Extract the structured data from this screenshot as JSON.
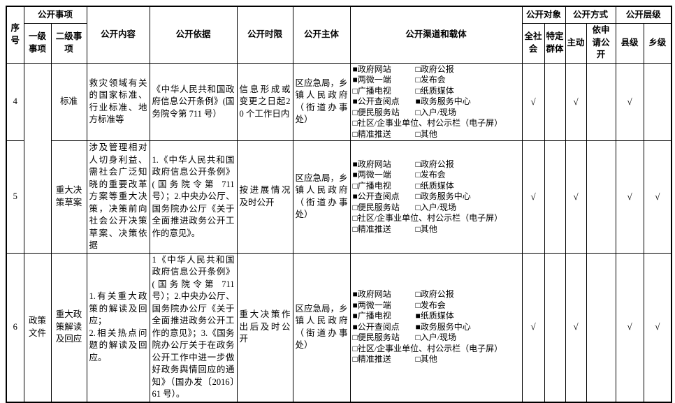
{
  "icons": {
    "checked_glyph": "■",
    "unchecked_glyph": "□",
    "checkmark_glyph": "√"
  },
  "table": {
    "headers": {
      "xuhao": "序号",
      "shixiang_group": "公开事项",
      "yiji": "一级事项",
      "erji": "二级事项",
      "neirong": "公开内容",
      "yiju": "公开依据",
      "shixian": "公开时限",
      "zhuti": "公开主体",
      "qudao": "公开渠道和载体",
      "duixiang_group": "公开对象",
      "quanshehui": "全社会",
      "teding": "特定群体",
      "fangshi_group": "公开方式",
      "zhudong": "主动",
      "yishenqing": "依申请公开",
      "cengji_group": "公开层级",
      "xianji": "县级",
      "xiangji": "乡级"
    },
    "rows": [
      {
        "no": "4",
        "level1": "",
        "level2": "标准",
        "content": "救灾领域有关的国家标准、行业标准、地方标准等",
        "basis": "《中华人民共和国政府信息公开条例》(国务院令第 711 号）",
        "time_limit": "信息形成或变更之日起20 个工作日内",
        "subject": "区应急局，乡镇人民政府（街道办事处）",
        "channels": [
          {
            "label": "政府网站",
            "checked": true
          },
          {
            "label": "政府公报",
            "checked": false
          },
          {
            "label": "两微一端",
            "checked": true
          },
          {
            "label": "发布会",
            "checked": false
          },
          {
            "label": "广播电视",
            "checked": false
          },
          {
            "label": "纸质媒体",
            "checked": false
          },
          {
            "label": "公开查阅点",
            "checked": true
          },
          {
            "label": "政务服务中心",
            "checked": true
          },
          {
            "label": "便民服务站",
            "checked": false
          },
          {
            "label": "入户/现场",
            "checked": false
          },
          {
            "label": "社区/企事业单位、村公示栏（电子屏）",
            "checked": false,
            "wide": true
          },
          {
            "label": "精准推送",
            "checked": false
          },
          {
            "label": "其他",
            "checked": false
          }
        ],
        "marks": {
          "quanshehui": "√",
          "teding": "",
          "zhudong": "√",
          "yishenqing": "",
          "xianji": "√",
          "xiangji": ""
        }
      },
      {
        "no": "5",
        "level2": "重大决策草案",
        "content": "涉及管理相对人切身利益、需社会广泛知晓的重要改革方案等重大决策，决策前向社会公开决策草案、决策依据",
        "basis": "1.《中华人民共和国政府信息公开条例》(国务院令第 711 号）；2.中央办公厅、国务院办公厅《关于全面推进政务公开工作的意见》。",
        "time_limit": "按进展情况及时公开",
        "subject": "区应急局，乡镇人民政府（街道办事处）",
        "channels": [
          {
            "label": "政府网站",
            "checked": true
          },
          {
            "label": "政府公报",
            "checked": false
          },
          {
            "label": "两微一端",
            "checked": true
          },
          {
            "label": "发布会",
            "checked": false
          },
          {
            "label": "广播电视",
            "checked": false
          },
          {
            "label": "纸质媒体",
            "checked": false
          },
          {
            "label": "公开查阅点",
            "checked": true
          },
          {
            "label": "政务服务中心",
            "checked": false
          },
          {
            "label": "便民服务站",
            "checked": false
          },
          {
            "label": "入户/现场",
            "checked": false
          },
          {
            "label": "社区/企事业单位、村公示栏（电子屏）",
            "checked": false,
            "wide": true
          },
          {
            "label": "精准推送",
            "checked": false
          },
          {
            "label": "其他",
            "checked": false
          }
        ],
        "marks": {
          "quanshehui": "√",
          "teding": "",
          "zhudong": "√",
          "yishenqing": "",
          "xianji": "√",
          "xiangji": "√"
        }
      },
      {
        "no": "6",
        "level1": "政策文件",
        "level2": "重大政策解读及回应",
        "content": "1.有关重大政策的解读及回应；\n2.相关热点问题的解读及回应。",
        "basis": "1《中华人民共和国政府信息公开条例》(国务院令第 711 号）；2.中央办公厅、国务院办公厅《关于全面推进政务公开工作的意见》；3.《国务院办公厅关于在政务公开工作中进一步做好政务舆情回应的通知》（国办发〔2016〕61 号）。",
        "time_limit": "重大决策作出后及时公开",
        "subject": "区应急局，乡镇人民政府（街道办事处）",
        "channels": [
          {
            "label": "政府网站",
            "checked": true
          },
          {
            "label": "政府公报",
            "checked": false
          },
          {
            "label": "两微一端",
            "checked": true
          },
          {
            "label": "发布会",
            "checked": false
          },
          {
            "label": "广播电视",
            "checked": true
          },
          {
            "label": "纸质媒体",
            "checked": true
          },
          {
            "label": "公开查阅点",
            "checked": true
          },
          {
            "label": "政务服务中心",
            "checked": true
          },
          {
            "label": "便民服务站",
            "checked": false
          },
          {
            "label": "入户/现场",
            "checked": false
          },
          {
            "label": "社区/企事业单位、村公示栏（电子屏）",
            "checked": false,
            "wide": true
          },
          {
            "label": "精准推送",
            "checked": false
          },
          {
            "label": "其他",
            "checked": false
          }
        ],
        "marks": {
          "quanshehui": "√",
          "teding": "",
          "zhudong": "√",
          "yishenqing": "",
          "xianji": "√",
          "xiangji": "√"
        }
      }
    ]
  }
}
